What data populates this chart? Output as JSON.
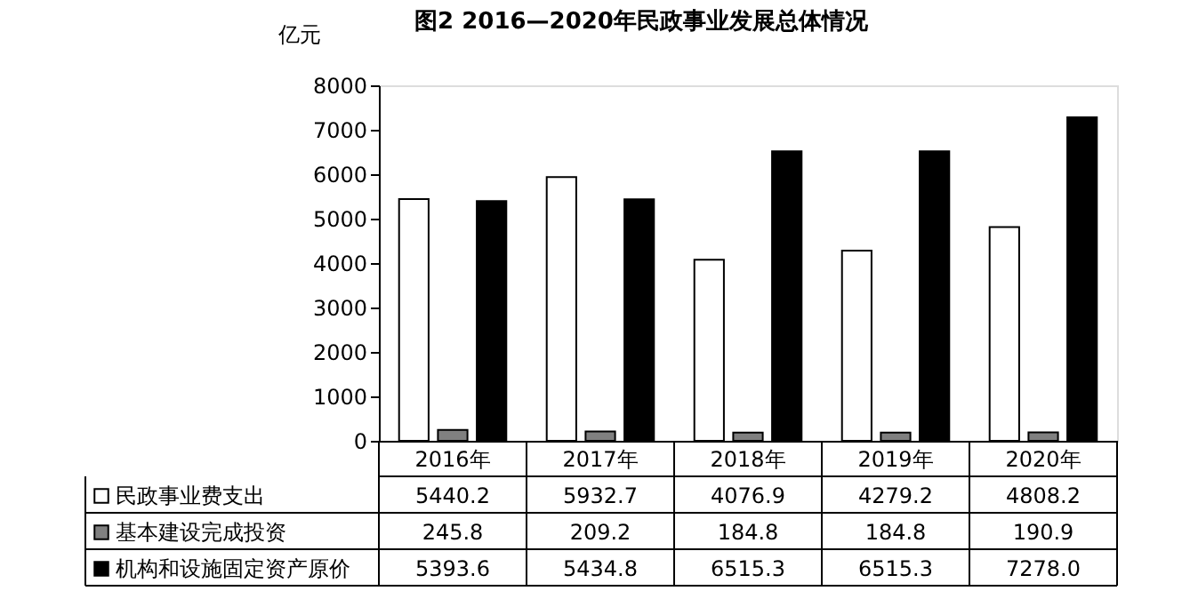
{
  "chart_data": {
    "type": "bar",
    "title": "图2  2016—2020年民政事业发展总体情况",
    "ylabel": "亿元",
    "categories": [
      "2016年",
      "2017年",
      "2018年",
      "2019年",
      "2020年"
    ],
    "series": [
      {
        "name": "民政事业费支出",
        "color": "#ffffff",
        "values": [
          5440.2,
          5932.7,
          4076.9,
          4279.2,
          4808.2
        ],
        "value_labels": [
          "5440.2",
          "5932.7",
          "4076.9",
          "4279.2",
          "4808.2"
        ]
      },
      {
        "name": "基本建设完成投资",
        "color": "#808080",
        "values": [
          245.8,
          209.2,
          184.8,
          184.8,
          190.9
        ],
        "value_labels": [
          "245.8",
          "209.2",
          "184.8",
          "184.8",
          "190.9"
        ]
      },
      {
        "name": "机构和设施固定资产原价",
        "color": "#000000",
        "values": [
          5393.6,
          5434.8,
          6515.3,
          6515.3,
          7278.0
        ],
        "value_labels": [
          "5393.6",
          "5434.8",
          "6515.3",
          "6515.3",
          "7278.0"
        ]
      }
    ],
    "ylim": [
      0,
      8000
    ],
    "yticks": [
      0,
      1000,
      2000,
      3000,
      4000,
      5000,
      6000,
      7000,
      8000
    ],
    "grid": false,
    "legend": "bottom left"
  }
}
